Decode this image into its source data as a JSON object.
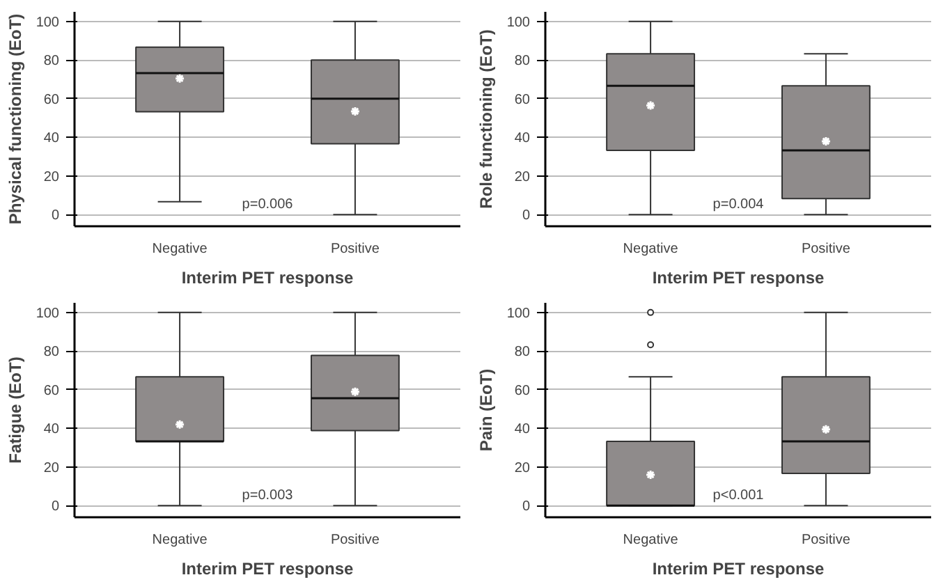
{
  "chart_data": [
    {
      "type": "box",
      "xlabel": "Interim PET response",
      "ylabel": "Physical functioning (EoT)",
      "categories": [
        "Negative",
        "Positive"
      ],
      "ylim": [
        -6,
        105
      ],
      "yticks": [
        0,
        20,
        40,
        60,
        80,
        100
      ],
      "grid": "y",
      "color": "#8f8b8b",
      "annotations": [
        "p=0.006"
      ],
      "boxes": [
        {
          "low": 6.7,
          "q1": 53.3,
          "median": 73.3,
          "q3": 86.7,
          "high": 100,
          "mean": 70.5
        },
        {
          "low": 0,
          "q1": 36.7,
          "median": 60,
          "q3": 80,
          "high": 100,
          "mean": 53.5
        }
      ]
    },
    {
      "type": "box",
      "xlabel": "Interim PET response",
      "ylabel": "Role functioning (EoT)",
      "categories": [
        "Negative",
        "Positive"
      ],
      "ylim": [
        -6,
        105
      ],
      "yticks": [
        0,
        20,
        40,
        60,
        80,
        100
      ],
      "grid": "y",
      "color": "#8f8b8b",
      "annotations": [
        "p=0.004"
      ],
      "boxes": [
        {
          "low": 0,
          "q1": 33.3,
          "median": 66.7,
          "q3": 83.3,
          "high": 100,
          "mean": 56.5
        },
        {
          "low": 0,
          "q1": 8.3,
          "median": 33.3,
          "q3": 66.7,
          "high": 83.3,
          "mean": 38
        }
      ]
    },
    {
      "type": "box",
      "xlabel": "Interim PET response",
      "ylabel": "Fatigue (EoT)",
      "categories": [
        "Negative",
        "Positive"
      ],
      "ylim": [
        -6,
        105
      ],
      "yticks": [
        0,
        20,
        40,
        60,
        80,
        100
      ],
      "grid": "y",
      "color": "#8f8b8b",
      "annotations": [
        "p=0.003"
      ],
      "boxes": [
        {
          "low": 0,
          "q1": 33.3,
          "median": 33.3,
          "q3": 66.7,
          "high": 100,
          "mean": 42
        },
        {
          "low": 0,
          "q1": 38.9,
          "median": 55.6,
          "q3": 77.8,
          "high": 100,
          "mean": 59
        }
      ]
    },
    {
      "type": "box",
      "xlabel": "Interim PET response",
      "ylabel": "Pain (EoT)",
      "categories": [
        "Negative",
        "Positive"
      ],
      "ylim": [
        -6,
        105
      ],
      "yticks": [
        0,
        20,
        40,
        60,
        80,
        100
      ],
      "grid": "y",
      "color": "#8f8b8b",
      "annotations": [
        "p<0.001"
      ],
      "boxes": [
        {
          "low": 0,
          "q1": 0,
          "median": 0,
          "q3": 33.3,
          "high": 66.7,
          "mean": 16,
          "outliers": [
            83.3,
            100
          ]
        },
        {
          "low": 0,
          "q1": 16.7,
          "median": 33.3,
          "q3": 66.7,
          "high": 100,
          "mean": 39.5
        }
      ]
    }
  ]
}
